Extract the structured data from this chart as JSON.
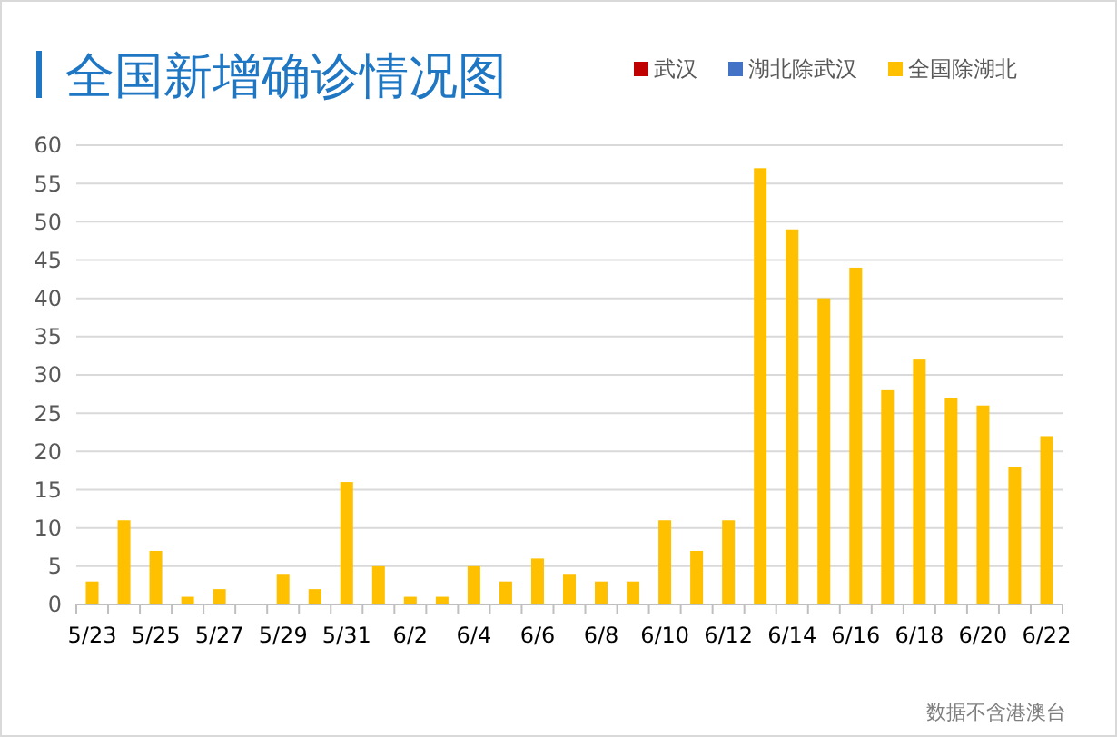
{
  "chart_data": {
    "type": "bar",
    "title": "全国新增确诊情况图",
    "stacked": true,
    "legend": "top right",
    "grid": "y",
    "categories": [
      "5/23",
      null,
      "5/25",
      null,
      "5/27",
      null,
      "5/29",
      null,
      "5/31",
      null,
      "6/2",
      null,
      "6/4",
      null,
      "6/6",
      null,
      "6/8",
      null,
      "6/10",
      null,
      "6/12",
      null,
      "6/14",
      null,
      "6/16",
      null,
      "6/18",
      null,
      "6/20",
      null,
      "6/22"
    ],
    "series": [
      {
        "name": "武汉",
        "color": "#c00000",
        "values": [
          0,
          0,
          0,
          0,
          0,
          0,
          0,
          0,
          0,
          0,
          0,
          0,
          0,
          0,
          0,
          0,
          0,
          0,
          0,
          0,
          0,
          0,
          0,
          0,
          0,
          0,
          0,
          0,
          0,
          0,
          0
        ]
      },
      {
        "name": "湖北除武汉",
        "color": "#4472c4",
        "values": [
          0,
          0,
          0,
          0,
          0,
          0,
          0,
          0,
          0,
          0,
          0,
          0,
          0,
          0,
          0,
          0,
          0,
          0,
          0,
          0,
          0,
          0,
          0,
          0,
          0,
          0,
          0,
          0,
          0,
          0,
          0
        ]
      },
      {
        "name": "全国除湖北",
        "color": "#ffc000",
        "values": [
          3,
          11,
          7,
          1,
          2,
          0,
          4,
          2,
          16,
          5,
          1,
          1,
          5,
          3,
          6,
          4,
          3,
          3,
          11,
          7,
          11,
          57,
          49,
          40,
          44,
          28,
          32,
          27,
          26,
          18,
          22
        ]
      }
    ],
    "ylim": [
      0,
      60
    ],
    "yticks": [
      0,
      5,
      10,
      15,
      20,
      25,
      30,
      35,
      40,
      45,
      50,
      55,
      60
    ],
    "annotations": [
      "数据不含港澳台"
    ]
  }
}
